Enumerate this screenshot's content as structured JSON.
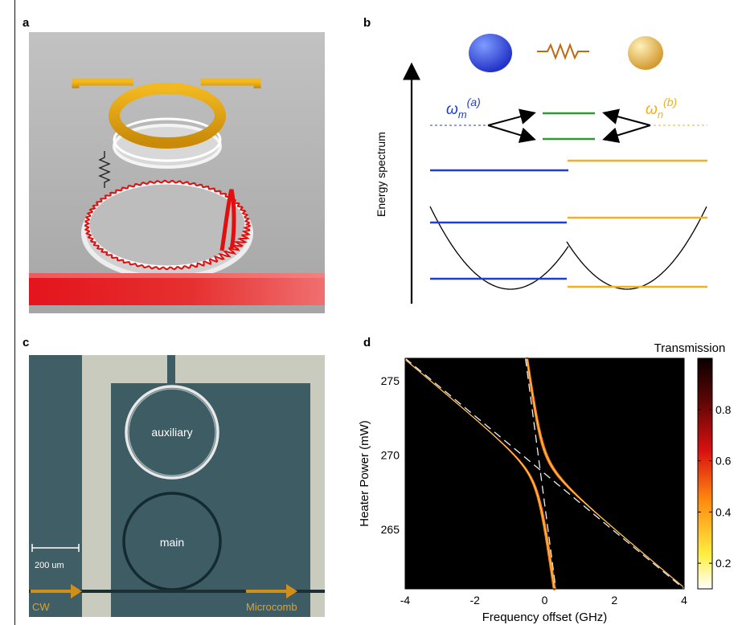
{
  "panels": {
    "a": "a",
    "b": "b",
    "c": "c",
    "d": "d"
  },
  "panel_b": {
    "ylabel": "Energy spectrum",
    "label_a_base": "ω",
    "label_a_sub": "m",
    "label_a_sup": "(a)",
    "label_b_base": "ω",
    "label_b_sub": "n",
    "label_b_sup": "(b)",
    "color_a": "#1f3fd1",
    "color_b": "#f0b020",
    "color_coupled": "#2f9a2f"
  },
  "panel_c": {
    "auxiliary": "auxiliary",
    "main": "main",
    "scale": "200 um",
    "cw": "CW",
    "microcomb": "Microcomb"
  },
  "chart_data": {
    "type": "heatmap",
    "xlabel": "Frequency offset (GHz)",
    "ylabel": "Heater Power (mW)",
    "colorbar_title": "Transmission",
    "xlim": [
      -4,
      4
    ],
    "ylim": [
      261,
      276.5
    ],
    "xticks": [
      -4,
      -2,
      0,
      2,
      4
    ],
    "yticks": [
      265,
      270,
      275
    ],
    "colorbar_ticks": [
      0.2,
      0.4,
      0.6,
      0.8
    ],
    "colorbar_range": [
      0.1,
      1.0
    ],
    "crossing": {
      "x": -0.1,
      "y": 268.8
    },
    "dashed_lines": [
      {
        "name": "",
        "x": [
          -4,
          4
        ],
        "y": [
          276.5,
          261
        ]
      },
      {
        "name": "",
        "x": [
          -0.55,
          0.32
        ],
        "y": [
          276.5,
          261
        ]
      }
    ],
    "coupling_gap_ghz": 0.8
  }
}
